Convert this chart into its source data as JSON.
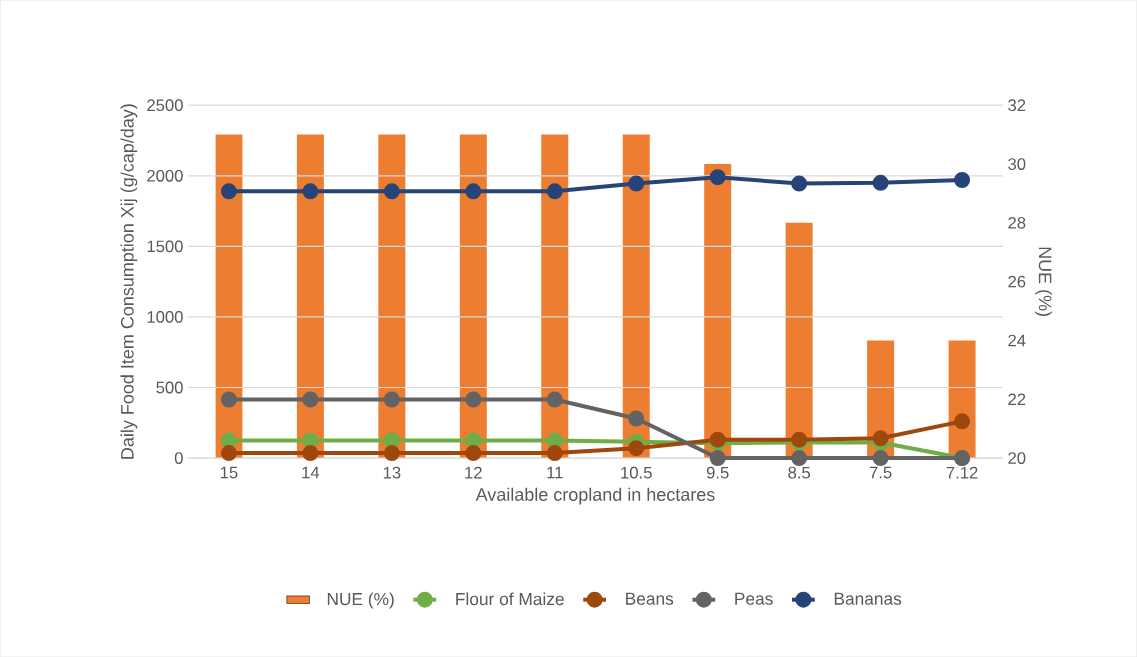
{
  "chart_data": {
    "type": "bar",
    "xlabel": "Available cropland in hectares",
    "ylabel": "Daily Food Item Consumption Xij (g/cap/day)",
    "y2label": "NUE (%)",
    "categories": [
      "15",
      "14",
      "13",
      "12",
      "11",
      "10.5",
      "9.5",
      "8.5",
      "7.5",
      "7.12"
    ],
    "series": [
      {
        "name": "NUE (%)",
        "axis": "y2",
        "color": "#ed7d31",
        "values": [
          31,
          31,
          31,
          31,
          31,
          31,
          30,
          28,
          24,
          24
        ]
      },
      {
        "name": "Flour of Maize",
        "type": "line",
        "color": "#70ad47",
        "values": [
          125,
          125,
          125,
          125,
          125,
          115,
          105,
          110,
          110,
          0
        ]
      },
      {
        "name": "Beans",
        "type": "line",
        "color": "#9e480e",
        "values": [
          35,
          35,
          35,
          35,
          35,
          70,
          130,
          130,
          140,
          260
        ]
      },
      {
        "name": "Peas",
        "type": "line",
        "color": "#636363",
        "values": [
          415,
          415,
          415,
          415,
          415,
          280,
          0,
          0,
          0,
          0
        ]
      },
      {
        "name": "Bananas",
        "type": "line",
        "color": "#264478",
        "values": [
          1890,
          1890,
          1890,
          1890,
          1890,
          1945,
          1990,
          1945,
          1950,
          1970
        ]
      }
    ],
    "ylim": [
      0,
      2500
    ],
    "yticks": [
      0,
      500,
      1000,
      1500,
      2000,
      2500
    ],
    "y2lim": [
      20,
      32
    ],
    "y2ticks": [
      20,
      22,
      24,
      26,
      28,
      30,
      32
    ],
    "grid": "y",
    "legend": "bottom",
    "marker": "circle"
  }
}
